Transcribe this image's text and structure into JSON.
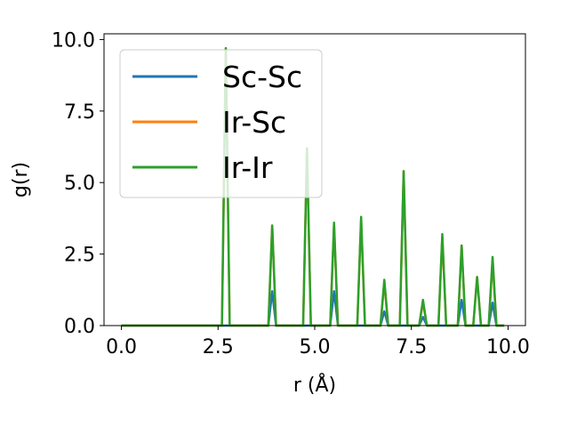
{
  "chart_data": {
    "type": "line",
    "title": "",
    "xlabel": "r (Å)",
    "ylabel": "g(r)",
    "xlim": [
      -0.45,
      10.45
    ],
    "ylim": [
      0.0,
      10.2
    ],
    "xticks": [
      0.0,
      2.5,
      5.0,
      7.5,
      10.0
    ],
    "xtick_labels": [
      "0.0",
      "2.5",
      "5.0",
      "7.5",
      "10.0"
    ],
    "yticks": [
      0.0,
      2.5,
      5.0,
      7.5,
      10.0
    ],
    "ytick_labels": [
      "0.0",
      "2.5",
      "5.0",
      "7.5",
      "10.0"
    ],
    "grid": false,
    "legend_position": "top-left",
    "series": [
      {
        "name": "Sc-Sc",
        "color": "#1f77b4",
        "x": [
          0.0,
          2.6,
          2.7,
          2.8,
          3.8,
          3.9,
          4.0,
          4.7,
          4.8,
          4.9,
          5.4,
          5.5,
          5.6,
          6.1,
          6.2,
          6.3,
          6.7,
          6.8,
          6.9,
          7.2,
          7.3,
          7.4,
          7.7,
          7.8,
          7.9,
          8.2,
          8.3,
          8.4,
          8.7,
          8.8,
          8.9,
          9.1,
          9.2,
          9.3,
          9.5,
          9.6,
          9.7,
          9.9
        ],
        "y": [
          0.0,
          0.0,
          0.0,
          0.0,
          0.0,
          1.2,
          0.0,
          0.0,
          0.0,
          0.0,
          0.0,
          1.2,
          0.0,
          0.0,
          0.0,
          0.0,
          0.0,
          0.5,
          0.0,
          0.0,
          0.0,
          0.0,
          0.0,
          0.3,
          0.0,
          0.0,
          0.0,
          0.0,
          0.0,
          0.9,
          0.0,
          0.0,
          0.0,
          0.0,
          0.0,
          0.8,
          0.0,
          0.0
        ]
      },
      {
        "name": "Ir-Sc",
        "color": "#ff7f0e",
        "x": [
          0.0,
          2.6,
          2.7,
          2.8,
          3.8,
          3.9,
          4.0,
          4.7,
          4.8,
          4.9,
          5.4,
          5.5,
          5.6,
          6.1,
          6.2,
          6.3,
          6.7,
          6.8,
          6.9,
          7.2,
          7.3,
          7.4,
          7.7,
          7.8,
          7.9,
          8.2,
          8.3,
          8.4,
          8.7,
          8.8,
          8.9,
          9.1,
          9.2,
          9.3,
          9.5,
          9.6,
          9.7,
          9.9
        ],
        "y": [
          0.0,
          0.0,
          9.7,
          0.0,
          0.0,
          3.5,
          0.0,
          0.0,
          6.2,
          0.0,
          0.0,
          3.5,
          0.0,
          0.0,
          3.7,
          0.0,
          0.0,
          1.5,
          0.0,
          0.0,
          5.4,
          0.0,
          0.0,
          0.8,
          0.0,
          0.0,
          3.1,
          0.0,
          0.0,
          2.8,
          0.0,
          0.0,
          1.7,
          0.0,
          0.0,
          2.3,
          0.0,
          0.0
        ]
      },
      {
        "name": "Ir-Ir",
        "color": "#2ca02c",
        "x": [
          0.0,
          2.6,
          2.7,
          2.8,
          3.8,
          3.9,
          4.0,
          4.7,
          4.8,
          4.9,
          5.4,
          5.5,
          5.6,
          6.1,
          6.2,
          6.3,
          6.7,
          6.8,
          6.9,
          7.2,
          7.3,
          7.4,
          7.7,
          7.8,
          7.9,
          8.2,
          8.3,
          8.4,
          8.7,
          8.8,
          8.9,
          9.1,
          9.2,
          9.3,
          9.5,
          9.6,
          9.7,
          9.9
        ],
        "y": [
          0.0,
          0.0,
          9.7,
          0.0,
          0.0,
          3.5,
          0.0,
          0.0,
          6.2,
          0.0,
          0.0,
          3.6,
          0.0,
          0.0,
          3.8,
          0.0,
          0.0,
          1.6,
          0.0,
          0.0,
          5.4,
          0.0,
          0.0,
          0.9,
          0.0,
          0.0,
          3.2,
          0.0,
          0.0,
          2.8,
          0.0,
          0.0,
          1.7,
          0.0,
          0.0,
          2.4,
          0.0,
          0.0
        ]
      }
    ]
  }
}
